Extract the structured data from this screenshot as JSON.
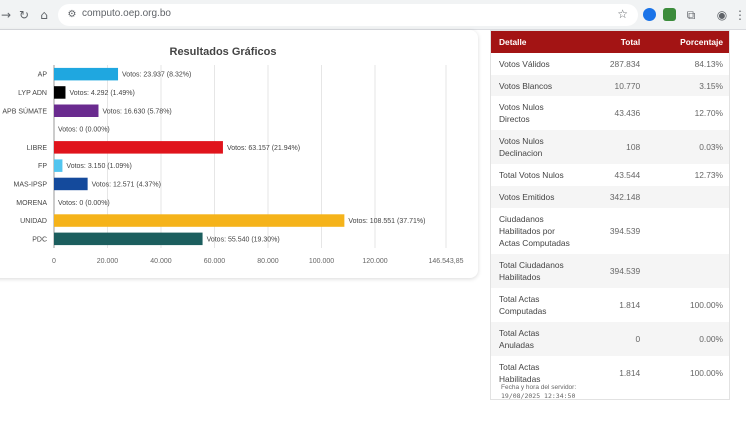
{
  "browser": {
    "url": "computo.oep.org.bo",
    "icons": [
      "arrow-forward",
      "reload",
      "home",
      "site-info",
      "star",
      "extension",
      "puzzle",
      "profile"
    ]
  },
  "colors": {
    "header_bg": "#a31414",
    "bars": [
      "#1fa7e0",
      "#000000",
      "#6a2b8f",
      "#888888",
      "#e0141c",
      "#52c5ef",
      "#144a9c",
      "#888888",
      "#f5b31a",
      "#1c5e5e"
    ]
  },
  "chart_data": {
    "type": "bar",
    "orientation": "horizontal",
    "title": "Resultados Gráficos",
    "categories": [
      "AP",
      "LYP ADN",
      "APB SÚMATE",
      "",
      "LIBRE",
      "FP",
      "MAS-IPSP",
      "MORENA",
      "UNIDAD",
      "PDC"
    ],
    "values": [
      23937,
      4292,
      16630,
      0,
      63157,
      3150,
      12571,
      0,
      108551,
      55540
    ],
    "data_labels": [
      "Votos: 23.937 (8.32%)",
      "Votos: 4.292 (1.49%)",
      "Votos: 16.630 (5.78%)",
      "Votos: 0 (0.00%)",
      "Votos: 63.157 (21.94%)",
      "Votos: 3.150 (1.09%)",
      "Votos: 12.571 (4.37%)",
      "Votos: 0 (0.00%)",
      "Votos: 108.551 (37.71%)",
      "Votos: 55.540 (19.30%)"
    ],
    "xlim": [
      0,
      146543.85
    ],
    "xticks": [
      0,
      20000,
      40000,
      60000,
      80000,
      100000,
      120000,
      146543.85
    ],
    "xtick_labels": [
      "0",
      "20.000",
      "40.000",
      "60.000",
      "80.000",
      "100.000",
      "120.000",
      "146.543,85"
    ],
    "grid": true
  },
  "table": {
    "headers": [
      "Detalle",
      "Total",
      "Porcentaje"
    ],
    "rows": [
      {
        "detalle": "Votos Válidos",
        "total": "287.834",
        "pct": "84.13%"
      },
      {
        "detalle": "Votos Blancos",
        "total": "10.770",
        "pct": "3.15%"
      },
      {
        "detalle": "Votos Nulos Directos",
        "total": "43.436",
        "pct": "12.70%"
      },
      {
        "detalle": "Votos Nulos Declinacion",
        "total": "108",
        "pct": "0.03%"
      },
      {
        "detalle": "Total Votos Nulos",
        "total": "43.544",
        "pct": "12.73%"
      },
      {
        "detalle": "Votos Emitidos",
        "total": "342.148",
        "pct": ""
      },
      {
        "detalle": "Ciudadanos Habilitados por Actas Computadas",
        "total": "394.539",
        "pct": ""
      },
      {
        "detalle": "Total Ciudadanos Habilitados",
        "total": "394.539",
        "pct": ""
      },
      {
        "detalle": "Total Actas Computadas",
        "total": "1.814",
        "pct": "100.00%"
      },
      {
        "detalle": "Total Actas Anuladas",
        "total": "0",
        "pct": "0.00%"
      },
      {
        "detalle": "Total Actas Habilitadas",
        "total": "1.814",
        "pct": "100.00%"
      }
    ],
    "footer_label": "Fecha y hora del servidor:",
    "footer_value": "19/08/2025 12:34:50"
  }
}
